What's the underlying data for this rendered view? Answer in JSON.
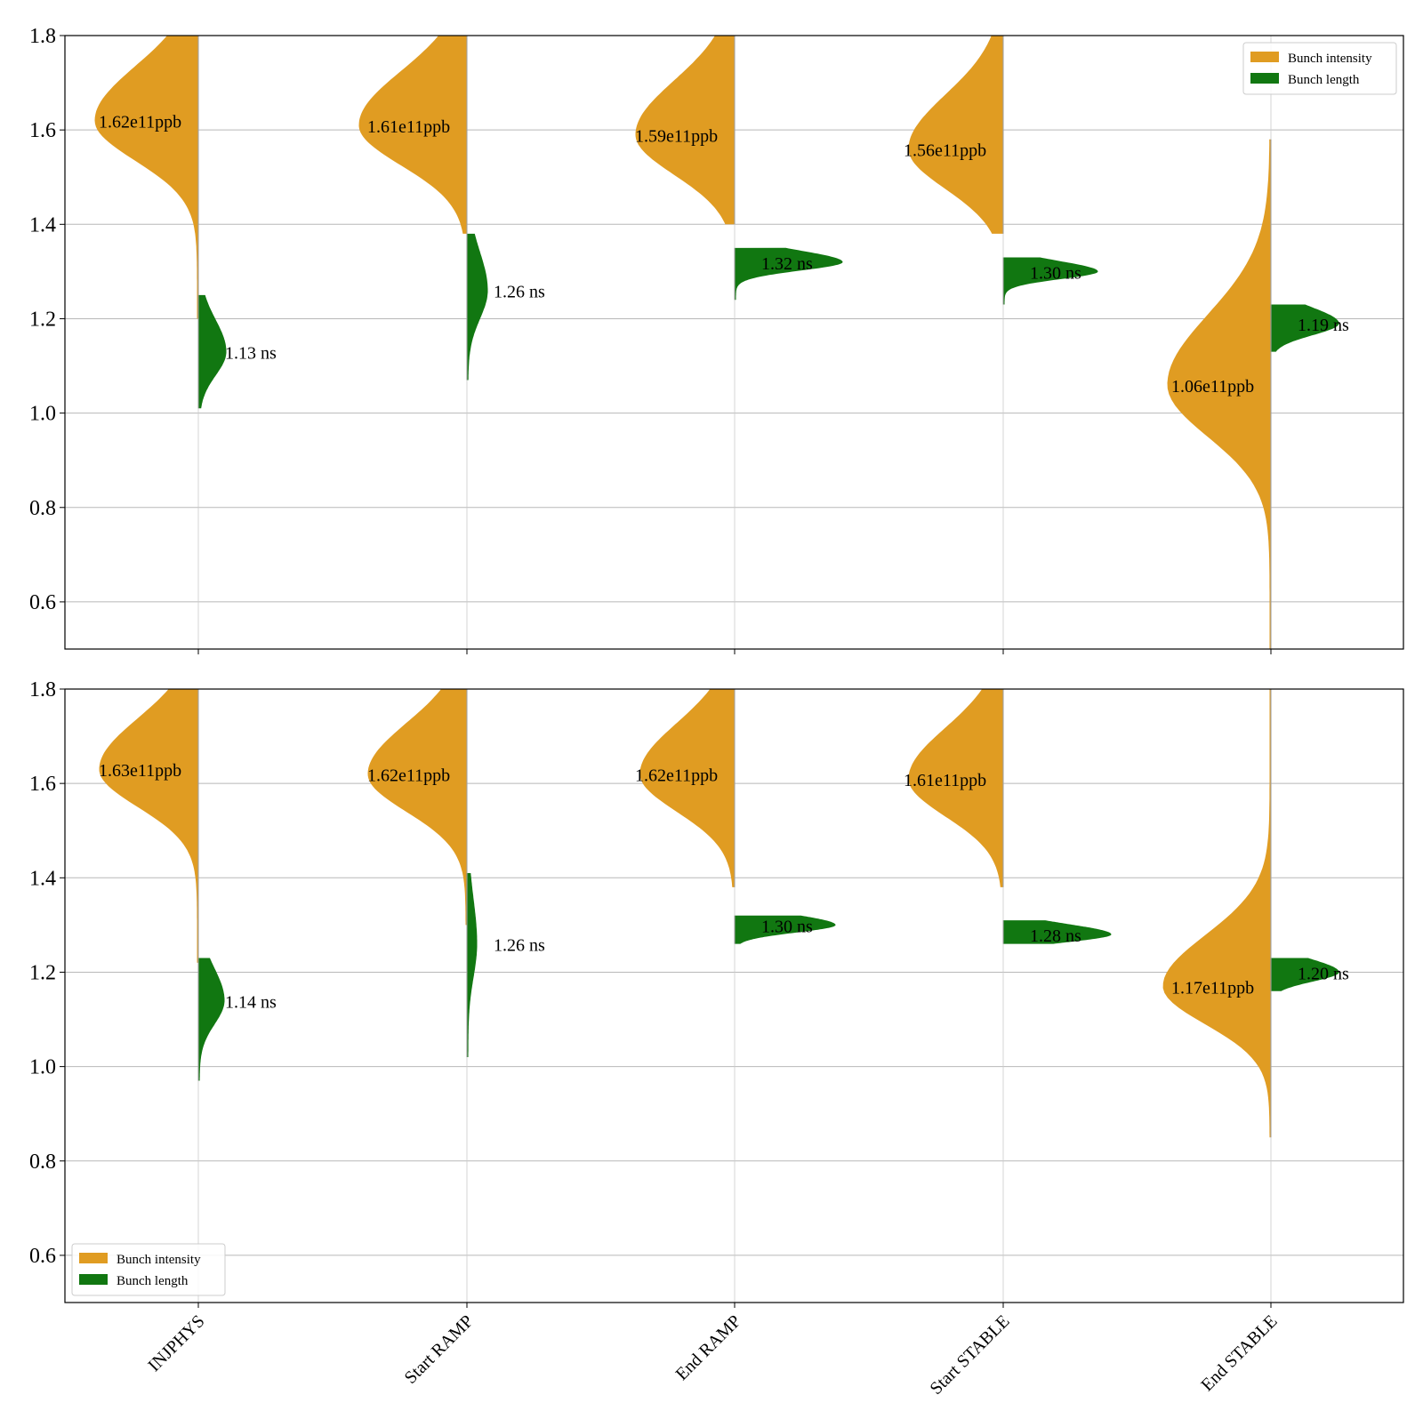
{
  "chart_data": [
    {
      "type": "violin",
      "categories": [
        "INJPHYS",
        "Start RAMP",
        "End RAMP",
        "Start STABLE",
        "End STABLE"
      ],
      "ylim": [
        0.5,
        1.8
      ],
      "yticks": [
        0.6,
        0.8,
        1.0,
        1.2,
        1.4,
        1.6,
        1.8
      ],
      "grid": "y",
      "legend": {
        "placement": "top-right",
        "entries": [
          "Bunch intensity",
          "Bunch length"
        ]
      },
      "series": [
        {
          "name": "Bunch intensity",
          "side": "left",
          "color": "#e09c22",
          "medians": [
            1.62,
            1.61,
            1.59,
            1.56,
            1.06
          ],
          "labels": [
            "1.62e11ppb",
            "1.61e11ppb",
            "1.59e11ppb",
            "1.56e11ppb",
            "1.06e11ppb"
          ],
          "ranges": [
            [
              1.2,
              1.8
            ],
            [
              1.38,
              1.8
            ],
            [
              1.4,
              1.8
            ],
            [
              1.38,
              1.8
            ],
            [
              0.5,
              1.58
            ]
          ]
        },
        {
          "name": "Bunch length",
          "side": "right",
          "color": "#117711",
          "medians": [
            1.13,
            1.26,
            1.32,
            1.3,
            1.19
          ],
          "labels": [
            "1.13 ns",
            "1.26 ns",
            "1.32 ns",
            "1.30 ns",
            "1.19 ns"
          ],
          "ranges": [
            [
              1.01,
              1.25
            ],
            [
              1.07,
              1.38
            ],
            [
              1.24,
              1.35
            ],
            [
              1.23,
              1.33
            ],
            [
              1.13,
              1.23
            ]
          ]
        }
      ]
    },
    {
      "type": "violin",
      "categories": [
        "INJPHYS",
        "Start RAMP",
        "End RAMP",
        "Start STABLE",
        "End STABLE"
      ],
      "ylim": [
        0.5,
        1.8
      ],
      "yticks": [
        0.6,
        0.8,
        1.0,
        1.2,
        1.4,
        1.6,
        1.8
      ],
      "grid": "y",
      "legend": {
        "placement": "bottom-left",
        "entries": [
          "Bunch intensity",
          "Bunch length"
        ]
      },
      "series": [
        {
          "name": "Bunch intensity",
          "side": "left",
          "color": "#e09c22",
          "medians": [
            1.63,
            1.62,
            1.62,
            1.61,
            1.17
          ],
          "labels": [
            "1.63e11ppb",
            "1.62e11ppb",
            "1.62e11ppb",
            "1.61e11ppb",
            "1.17e11ppb"
          ],
          "ranges": [
            [
              1.22,
              1.8
            ],
            [
              1.3,
              1.8
            ],
            [
              1.38,
              1.8
            ],
            [
              1.38,
              1.8
            ],
            [
              0.85,
              1.8
            ]
          ]
        },
        {
          "name": "Bunch length",
          "side": "right",
          "color": "#117711",
          "medians": [
            1.14,
            1.26,
            1.3,
            1.28,
            1.2
          ],
          "labels": [
            "1.14 ns",
            "1.26 ns",
            "1.30 ns",
            "1.28 ns",
            "1.20 ns"
          ],
          "ranges": [
            [
              0.97,
              1.23
            ],
            [
              1.02,
              1.41
            ],
            [
              1.26,
              1.32
            ],
            [
              1.26,
              1.31
            ],
            [
              1.16,
              1.23
            ]
          ]
        }
      ]
    }
  ]
}
